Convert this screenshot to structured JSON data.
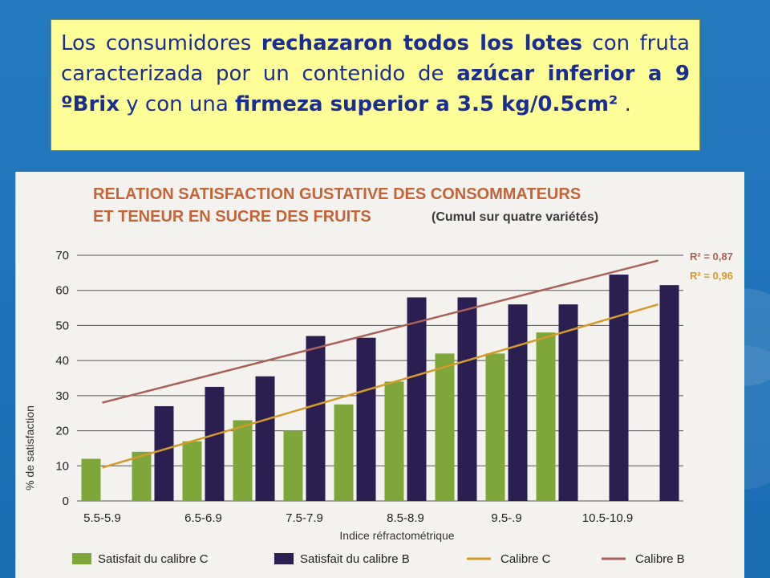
{
  "caption": {
    "parts": [
      {
        "text": "Los consumidores ",
        "bold": false
      },
      {
        "text": "rechazaron todos los lotes",
        "bold": true
      },
      {
        "text": " con fruta caracterizada por un contenido de ",
        "bold": false
      },
      {
        "text": "azúcar inferior a 9 ºBrix",
        "bold": true
      },
      {
        "text": " y con una ",
        "bold": false
      },
      {
        "text": "firmeza superior a 3.5 kg/0.5cm²",
        "bold": true
      },
      {
        "text": " .",
        "bold": false
      }
    ]
  },
  "chart_data": {
    "type": "bar",
    "title_line1": "RELATION SATISFACTION GUSTATIVE DES CONSOMMATEURS",
    "title_line2": "ET TENEUR EN SUCRE DES FRUITS",
    "subtitle": "(Cumul sur quatre variétés)",
    "xlabel": "Indice réfractométrique",
    "ylabel": "% de satisfaction",
    "ylim": [
      0,
      70
    ],
    "yticks": [
      0,
      10,
      20,
      30,
      40,
      50,
      60,
      70
    ],
    "grid": true,
    "x_tick_labels": [
      "5.5-5.9",
      "6.5-6.9",
      "7.5-7.9",
      "8.5-8.9",
      "9.5-.9",
      "10.5-10.9"
    ],
    "categories_count": 12,
    "series": [
      {
        "name": "Satisfait du calibre C",
        "color": "#7fa63a",
        "values": [
          12,
          14,
          17,
          23,
          20,
          27.5,
          34,
          42,
          42,
          48,
          null,
          null
        ]
      },
      {
        "name": "Satisfait du calibre B",
        "color": "#2b1f52",
        "values": [
          null,
          27,
          32.5,
          35.5,
          47,
          46.5,
          58,
          58,
          56,
          56,
          64.5,
          61.5
        ]
      }
    ],
    "trendlines": [
      {
        "name": "Calibre C",
        "color": "#d49a2c",
        "r2": "R² = 0,96",
        "start": [
          0.5,
          9.5
        ],
        "end": [
          11.5,
          56
        ]
      },
      {
        "name": "Calibre B",
        "color": "#a8625a",
        "r2": "R² = 0,87",
        "start": [
          0.5,
          28
        ],
        "end": [
          11.5,
          68.5
        ]
      }
    ],
    "legend_position": "bottom"
  }
}
